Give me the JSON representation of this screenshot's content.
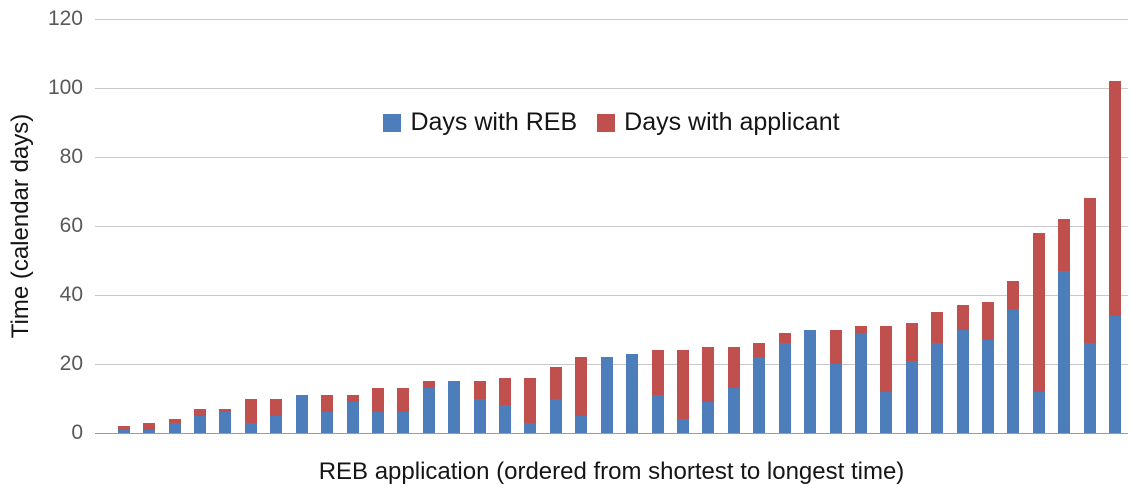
{
  "chart_data": {
    "type": "bar",
    "stacked": true,
    "xlabel": "REB application (ordered from shortest to longest time)",
    "ylabel": "Time (calendar days)",
    "ylim": [
      0,
      120
    ],
    "yticks": [
      0,
      20,
      40,
      60,
      80,
      100,
      120
    ],
    "grid": "horizontal",
    "legend_position": "top-center",
    "colors": {
      "reb_blue": "#4D7EBB",
      "applicant_red": "#C0504D"
    },
    "n_bars": 40,
    "series": [
      {
        "name": "Days with REB",
        "color": "#4D7EBB",
        "values": [
          1,
          1,
          3,
          5,
          6,
          3,
          5,
          11,
          6,
          9,
          6,
          6,
          13,
          15,
          10,
          8,
          3,
          10,
          5,
          22,
          23,
          11,
          4,
          9,
          13,
          22,
          26,
          30,
          20,
          29,
          12,
          21,
          26,
          30,
          27,
          36,
          12,
          47,
          26,
          34
        ]
      },
      {
        "name": "Days with applicant",
        "color": "#C0504D",
        "values": [
          1,
          2,
          1,
          2,
          1,
          7,
          5,
          0,
          5,
          2,
          7,
          7,
          2,
          0,
          5,
          8,
          13,
          9,
          17,
          0,
          0,
          13,
          20,
          16,
          12,
          4,
          3,
          0,
          10,
          2,
          19,
          11,
          9,
          7,
          11,
          8,
          46,
          15,
          42,
          68
        ]
      }
    ],
    "totals": [
      2,
      3,
      4,
      7,
      7,
      10,
      10,
      11,
      11,
      11,
      13,
      13,
      15,
      15,
      15,
      16,
      16,
      19,
      22,
      22,
      23,
      24,
      24,
      25,
      25,
      26,
      29,
      30,
      30,
      31,
      31,
      32,
      35,
      37,
      38,
      44,
      58,
      62,
      68,
      102
    ]
  }
}
